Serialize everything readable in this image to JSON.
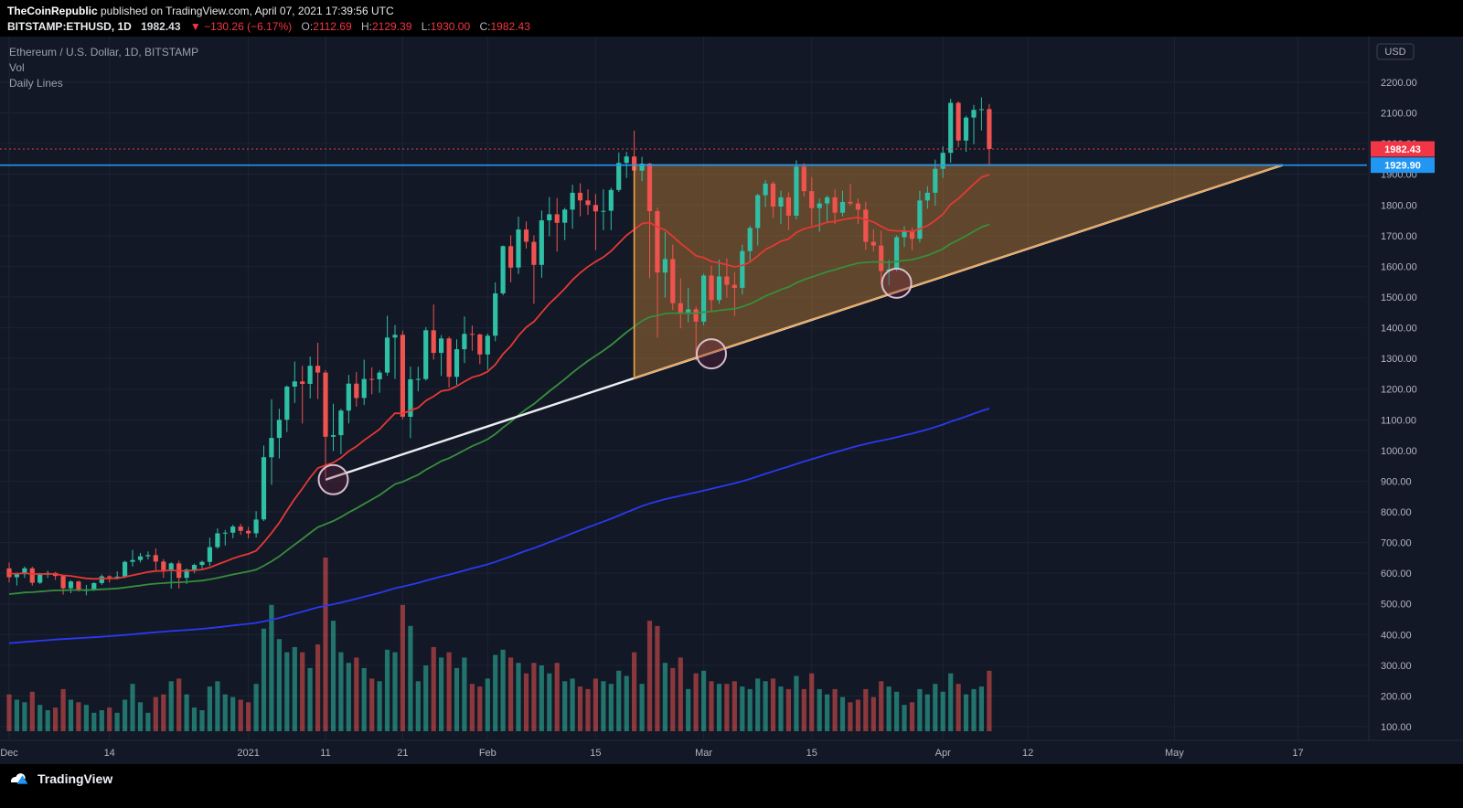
{
  "header": {
    "publisher": "TheCoinRepublic",
    "published_suffix": " published on TradingView.com, April 07, 2021 17:39:56 UTC",
    "symbol": "BITSTAMP:ETHUSD, 1D",
    "last_price": "1982.43",
    "change_text": "▼ −130.26 (−6.17%)",
    "ohlc": {
      "o_label": "O:",
      "o_value": "2112.69",
      "h_label": "H:",
      "h_value": "2129.39",
      "l_label": "L:",
      "l_value": "1930.00",
      "c_label": "C:",
      "c_value": "1982.43"
    }
  },
  "legend": {
    "title": "Ethereum / U.S. Dollar, 1D, BITSTAMP",
    "vol_label": "Vol",
    "lines_label": "Daily Lines"
  },
  "price_axis": {
    "unit_label": "USD",
    "labels": [
      "2200.00",
      "2100.00",
      "2000.00",
      "1900.00",
      "1800.00",
      "1700.00",
      "1600.00",
      "1500.00",
      "1400.00",
      "1300.00",
      "1200.00",
      "1100.00",
      "1000.00",
      "900.00",
      "800.00",
      "700.00",
      "600.00",
      "500.00",
      "400.00",
      "300.00",
      "200.00",
      "100.00"
    ],
    "last_price_box": "1982.43",
    "level_box": "1929.90"
  },
  "time_axis": {
    "ticks": [
      {
        "label": "Dec",
        "day": 0
      },
      {
        "label": "14",
        "day": 13
      },
      {
        "label": "2021",
        "day": 31
      },
      {
        "label": "11",
        "day": 41
      },
      {
        "label": "21",
        "day": 51
      },
      {
        "label": "Feb",
        "day": 62
      },
      {
        "label": "15",
        "day": 76
      },
      {
        "label": "Mar",
        "day": 90
      },
      {
        "label": "15",
        "day": 104
      },
      {
        "label": "Apr",
        "day": 121
      },
      {
        "label": "12",
        "day": 132
      },
      {
        "label": "May",
        "day": 151
      },
      {
        "label": "17",
        "day": 167
      }
    ]
  },
  "footer": {
    "brand": "TradingView"
  },
  "colors": {
    "background": "#121826",
    "grid": "#1c2333",
    "up": "#2fbfa5",
    "down": "#ef5350",
    "vol_up": "rgba(47,191,165,0.55)",
    "vol_down": "rgba(239,83,80,0.55)",
    "trend_line": "#eceff1",
    "level_line": "#2196f3",
    "last_price": "#f23645",
    "wedge_fill": "rgba(247,162,55,0.34)",
    "wedge_stroke": "#f0a04a",
    "circle_stroke": "rgba(226,198,210,0.95)",
    "circle_fill": "rgba(120,35,70,0.30)",
    "axis_text": "#b2b5be"
  },
  "chart_data": {
    "type": "candlestick+volume",
    "title": "Ethereum / U.S. Dollar, 1D, BITSTAMP",
    "symbol": "BITSTAMP:ETHUSD",
    "interval": "1D",
    "grid": true,
    "ylim": [
      100,
      2200
    ],
    "y_tick_step": 100,
    "x_domain_days": 168,
    "columns": [
      "date",
      "open",
      "high",
      "low",
      "close",
      "volume"
    ],
    "candles": [
      [
        "2020-12-01",
        616,
        635,
        570,
        587,
        140
      ],
      [
        "2020-12-02",
        587,
        602,
        560,
        597,
        120
      ],
      [
        "2020-12-03",
        597,
        622,
        585,
        616,
        110
      ],
      [
        "2020-12-04",
        616,
        621,
        560,
        569,
        150
      ],
      [
        "2020-12-05",
        569,
        601,
        565,
        597,
        100
      ],
      [
        "2020-12-06",
        597,
        608,
        585,
        601,
        80
      ],
      [
        "2020-12-07",
        601,
        604,
        578,
        591,
        90
      ],
      [
        "2020-12-08",
        591,
        595,
        530,
        551,
        160
      ],
      [
        "2020-12-09",
        551,
        577,
        535,
        573,
        120
      ],
      [
        "2020-12-10",
        573,
        576,
        540,
        544,
        110
      ],
      [
        "2020-12-11",
        544,
        562,
        528,
        545,
        100
      ],
      [
        "2020-12-12",
        545,
        571,
        542,
        568,
        70
      ],
      [
        "2020-12-13",
        568,
        596,
        562,
        590,
        80
      ],
      [
        "2020-12-14",
        590,
        593,
        570,
        586,
        90
      ],
      [
        "2020-12-15",
        586,
        606,
        580,
        589,
        70
      ],
      [
        "2020-12-16",
        589,
        641,
        584,
        637,
        120
      ],
      [
        "2020-12-17",
        637,
        676,
        622,
        643,
        180
      ],
      [
        "2020-12-18",
        643,
        666,
        635,
        655,
        110
      ],
      [
        "2020-12-19",
        655,
        671,
        645,
        659,
        70
      ],
      [
        "2020-12-20",
        659,
        681,
        610,
        638,
        130
      ],
      [
        "2020-12-21",
        638,
        646,
        585,
        610,
        140
      ],
      [
        "2020-12-22",
        610,
        636,
        550,
        632,
        190
      ],
      [
        "2020-12-23",
        632,
        641,
        550,
        585,
        200
      ],
      [
        "2020-12-24",
        585,
        616,
        565,
        612,
        140
      ],
      [
        "2020-12-25",
        612,
        631,
        600,
        627,
        90
      ],
      [
        "2020-12-26",
        627,
        641,
        615,
        637,
        80
      ],
      [
        "2020-12-27",
        637,
        716,
        624,
        685,
        170
      ],
      [
        "2020-12-28",
        685,
        746,
        680,
        730,
        190
      ],
      [
        "2020-12-29",
        730,
        741,
        690,
        732,
        140
      ],
      [
        "2020-12-30",
        732,
        758,
        714,
        752,
        130
      ],
      [
        "2020-12-31",
        752,
        761,
        725,
        738,
        120
      ],
      [
        "2021-01-01",
        738,
        751,
        714,
        730,
        110
      ],
      [
        "2021-01-02",
        730,
        802,
        716,
        775,
        180
      ],
      [
        "2021-01-03",
        775,
        1016,
        770,
        978,
        390
      ],
      [
        "2021-01-04",
        978,
        1167,
        888,
        1041,
        480
      ],
      [
        "2021-01-05",
        1041,
        1136,
        974,
        1100,
        350
      ],
      [
        "2021-01-06",
        1100,
        1212,
        1060,
        1208,
        300
      ],
      [
        "2021-01-07",
        1208,
        1290,
        1155,
        1225,
        320
      ],
      [
        "2021-01-08",
        1225,
        1276,
        1088,
        1217,
        300
      ],
      [
        "2021-01-09",
        1217,
        1306,
        1170,
        1276,
        240
      ],
      [
        "2021-01-10",
        1276,
        1351,
        1168,
        1254,
        330
      ],
      [
        "2021-01-11",
        1254,
        1262,
        912,
        1045,
        660
      ],
      [
        "2021-01-12",
        1045,
        1152,
        998,
        1050,
        420
      ],
      [
        "2021-01-13",
        1050,
        1136,
        988,
        1130,
        300
      ],
      [
        "2021-01-14",
        1130,
        1246,
        1088,
        1218,
        260
      ],
      [
        "2021-01-15",
        1218,
        1256,
        1143,
        1171,
        280
      ],
      [
        "2021-01-16",
        1171,
        1296,
        1148,
        1233,
        240
      ],
      [
        "2021-01-17",
        1233,
        1271,
        1183,
        1232,
        200
      ],
      [
        "2021-01-18",
        1232,
        1261,
        1188,
        1254,
        190
      ],
      [
        "2021-01-19",
        1254,
        1439,
        1244,
        1368,
        310
      ],
      [
        "2021-01-20",
        1368,
        1409,
        1233,
        1377,
        300
      ],
      [
        "2021-01-21",
        1377,
        1391,
        1102,
        1110,
        480
      ],
      [
        "2021-01-22",
        1110,
        1274,
        1040,
        1232,
        400
      ],
      [
        "2021-01-23",
        1232,
        1273,
        1193,
        1233,
        190
      ],
      [
        "2021-01-24",
        1233,
        1402,
        1228,
        1392,
        250
      ],
      [
        "2021-01-25",
        1392,
        1476,
        1296,
        1318,
        320
      ],
      [
        "2021-01-26",
        1318,
        1376,
        1243,
        1365,
        280
      ],
      [
        "2021-01-27",
        1365,
        1371,
        1205,
        1240,
        300
      ],
      [
        "2021-01-28",
        1240,
        1362,
        1214,
        1330,
        240
      ],
      [
        "2021-01-29",
        1330,
        1437,
        1285,
        1380,
        280
      ],
      [
        "2021-01-30",
        1380,
        1407,
        1325,
        1378,
        180
      ],
      [
        "2021-01-31",
        1378,
        1381,
        1281,
        1313,
        170
      ],
      [
        "2021-02-01",
        1313,
        1381,
        1263,
        1374,
        200
      ],
      [
        "2021-02-02",
        1374,
        1548,
        1356,
        1512,
        290
      ],
      [
        "2021-02-03",
        1512,
        1668,
        1506,
        1666,
        310
      ],
      [
        "2021-02-04",
        1666,
        1701,
        1548,
        1596,
        280
      ],
      [
        "2021-02-05",
        1596,
        1762,
        1575,
        1720,
        260
      ],
      [
        "2021-02-06",
        1720,
        1746,
        1658,
        1680,
        220
      ],
      [
        "2021-02-07",
        1680,
        1701,
        1478,
        1605,
        260
      ],
      [
        "2021-02-08",
        1605,
        1782,
        1563,
        1750,
        250
      ],
      [
        "2021-02-09",
        1750,
        1826,
        1698,
        1770,
        220
      ],
      [
        "2021-02-10",
        1770,
        1823,
        1648,
        1742,
        260
      ],
      [
        "2021-02-11",
        1742,
        1791,
        1686,
        1785,
        190
      ],
      [
        "2021-02-12",
        1785,
        1866,
        1723,
        1840,
        200
      ],
      [
        "2021-02-13",
        1840,
        1871,
        1763,
        1815,
        170
      ],
      [
        "2021-02-14",
        1815,
        1851,
        1768,
        1800,
        160
      ],
      [
        "2021-02-15",
        1800,
        1836,
        1653,
        1779,
        200
      ],
      [
        "2021-02-16",
        1779,
        1851,
        1718,
        1781,
        190
      ],
      [
        "2021-02-17",
        1781,
        1856,
        1718,
        1849,
        180
      ],
      [
        "2021-02-18",
        1849,
        1971,
        1843,
        1937,
        230
      ],
      [
        "2021-02-19",
        1937,
        1973,
        1888,
        1958,
        210
      ],
      [
        "2021-02-20",
        1958,
        2042,
        1808,
        1912,
        300
      ],
      [
        "2021-02-21",
        1912,
        1957,
        1878,
        1935,
        180
      ],
      [
        "2021-02-22",
        1935,
        1937,
        1562,
        1780,
        420
      ],
      [
        "2021-02-23",
        1780,
        1791,
        1368,
        1580,
        400
      ],
      [
        "2021-02-24",
        1580,
        1712,
        1498,
        1624,
        260
      ],
      [
        "2021-02-25",
        1624,
        1671,
        1458,
        1480,
        240
      ],
      [
        "2021-02-26",
        1480,
        1561,
        1398,
        1445,
        280
      ],
      [
        "2021-02-27",
        1445,
        1529,
        1418,
        1460,
        160
      ],
      [
        "2021-02-28",
        1460,
        1469,
        1293,
        1420,
        220
      ],
      [
        "2021-03-01",
        1420,
        1576,
        1408,
        1570,
        230
      ],
      [
        "2021-03-02",
        1570,
        1602,
        1453,
        1490,
        190
      ],
      [
        "2021-03-03",
        1490,
        1622,
        1478,
        1567,
        180
      ],
      [
        "2021-03-04",
        1567,
        1626,
        1498,
        1540,
        180
      ],
      [
        "2021-03-05",
        1540,
        1581,
        1438,
        1530,
        190
      ],
      [
        "2021-03-06",
        1530,
        1671,
        1508,
        1650,
        170
      ],
      [
        "2021-03-07",
        1650,
        1732,
        1618,
        1725,
        160
      ],
      [
        "2021-03-08",
        1725,
        1836,
        1668,
        1832,
        200
      ],
      [
        "2021-03-09",
        1832,
        1881,
        1793,
        1870,
        190
      ],
      [
        "2021-03-10",
        1870,
        1877,
        1758,
        1795,
        200
      ],
      [
        "2021-03-11",
        1795,
        1846,
        1738,
        1825,
        170
      ],
      [
        "2021-03-12",
        1825,
        1841,
        1718,
        1765,
        160
      ],
      [
        "2021-03-13",
        1765,
        1946,
        1753,
        1925,
        210
      ],
      [
        "2021-03-14",
        1925,
        1936,
        1828,
        1845,
        160
      ],
      [
        "2021-03-15",
        1845,
        1891,
        1733,
        1790,
        220
      ],
      [
        "2021-03-16",
        1790,
        1821,
        1713,
        1805,
        160
      ],
      [
        "2021-03-17",
        1805,
        1831,
        1743,
        1825,
        140
      ],
      [
        "2021-03-18",
        1825,
        1851,
        1738,
        1775,
        160
      ],
      [
        "2021-03-19",
        1775,
        1846,
        1763,
        1810,
        130
      ],
      [
        "2021-03-20",
        1810,
        1869,
        1798,
        1805,
        110
      ],
      [
        "2021-03-21",
        1805,
        1821,
        1738,
        1785,
        120
      ],
      [
        "2021-03-22",
        1785,
        1811,
        1653,
        1680,
        160
      ],
      [
        "2021-03-23",
        1680,
        1721,
        1648,
        1668,
        130
      ],
      [
        "2021-03-24",
        1668,
        1716,
        1543,
        1585,
        190
      ],
      [
        "2021-03-25",
        1585,
        1621,
        1538,
        1590,
        170
      ],
      [
        "2021-03-26",
        1590,
        1701,
        1583,
        1695,
        150
      ],
      [
        "2021-03-27",
        1695,
        1731,
        1663,
        1715,
        100
      ],
      [
        "2021-03-28",
        1715,
        1726,
        1653,
        1690,
        110
      ],
      [
        "2021-03-29",
        1690,
        1846,
        1678,
        1815,
        160
      ],
      [
        "2021-03-30",
        1815,
        1861,
        1788,
        1840,
        140
      ],
      [
        "2021-03-31",
        1840,
        1948,
        1798,
        1918,
        180
      ],
      [
        "2021-04-01",
        1918,
        1991,
        1888,
        1970,
        150
      ],
      [
        "2021-04-02",
        1970,
        2146,
        1938,
        2133,
        220
      ],
      [
        "2021-04-03",
        2133,
        2138,
        1988,
        2010,
        180
      ],
      [
        "2021-04-04",
        2010,
        2091,
        1973,
        2085,
        140
      ],
      [
        "2021-04-05",
        2085,
        2126,
        1998,
        2110,
        160
      ],
      [
        "2021-04-06",
        2110,
        2151,
        2043,
        2112,
        170
      ],
      [
        "2021-04-07",
        2112.69,
        2129.39,
        1930.0,
        1982.43,
        230
      ]
    ],
    "moving_averages": [
      {
        "name": "fast",
        "color": "#e53935",
        "alpha": 0.09,
        "seed": 600
      },
      {
        "name": "mid",
        "color": "#388e3c",
        "alpha": 0.035,
        "seed": 530
      },
      {
        "name": "slow",
        "color": "#2b39f0",
        "alpha": 0.009,
        "seed": 370
      }
    ],
    "overlays": {
      "horizontal_level": {
        "price": 1929.9,
        "label": "1929.90",
        "color": "#2196f3"
      },
      "last_price_line": {
        "price": 1982.43,
        "label": "1982.43",
        "color": "#f23645",
        "style": "dotted"
      },
      "trend_line": {
        "from": {
          "day": 41,
          "price": 905
        },
        "to": {
          "day": 165,
          "price": 1930
        }
      },
      "wedge": {
        "points": [
          {
            "day": 81,
            "price": 1930
          },
          {
            "day": 81,
            "price": 1236
          },
          {
            "day": 165,
            "price": 1930
          }
        ]
      },
      "circles": [
        {
          "day": 42,
          "price": 905
        },
        {
          "day": 91,
          "price": 1315
        },
        {
          "day": 115,
          "price": 1545
        }
      ]
    }
  }
}
